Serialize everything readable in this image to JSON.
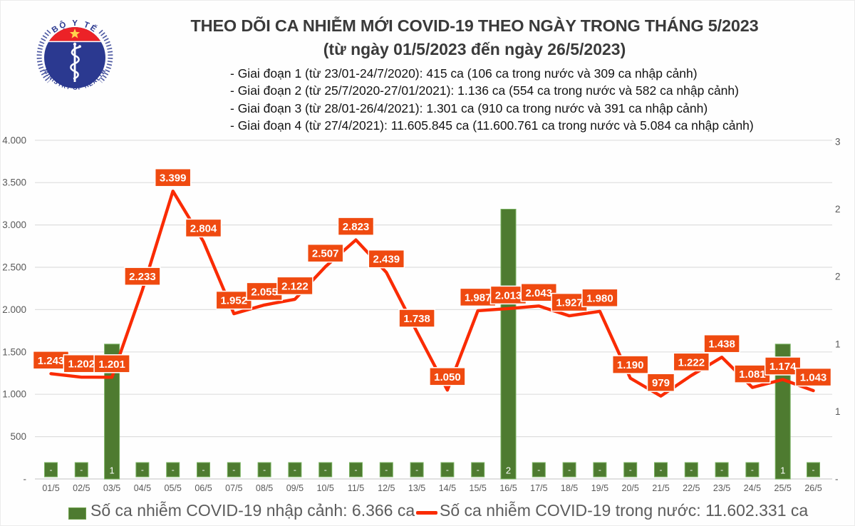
{
  "logo": {
    "arc_top": "BỘ Y TẾ",
    "arc_bottom": "MINISTRY OF HEALTH"
  },
  "header": {
    "title": "THEO DÕI CA NHIỄM MỚI COVID-19 THEO NGÀY TRONG THÁNG 5/2023",
    "subtitle": "(từ ngày 01/5/2023 đến ngày 26/5/2023)",
    "notes": [
      "- Giai đoạn 1 (từ 23/01-24/7/2020): 415 ca (106 ca trong nước và 309 ca nhập cảnh)",
      "- Giai đoạn 2 (từ 25/7/2020-27/01/2021): 1.136 ca (554 ca trong nước và 582 ca nhập cảnh)",
      "- Giai đoạn 3 (từ 28/01-26/4/2021): 1.301 ca (910 ca trong nước và 391 ca nhập cảnh)",
      "- Giai đoạn 4 (từ 27/4/2021): 11.605.845 ca (11.600.761 ca trong nước và 5.084 ca nhập cảnh)"
    ]
  },
  "chart_data": {
    "type": "combo",
    "title": "THEO DÕI CA NHIỄM MỚI COVID-19 THEO NGÀY TRONG THÁNG 5/2023",
    "categories": [
      "01/5",
      "02/5",
      "03/5",
      "04/5",
      "05/5",
      "06/5",
      "07/5",
      "08/5",
      "09/5",
      "10/5",
      "11/5",
      "12/5",
      "13/5",
      "14/5",
      "15/5",
      "16/5",
      "17/5",
      "18/5",
      "19/5",
      "20/5",
      "21/5",
      "22/5",
      "23/5",
      "24/5",
      "25/5",
      "26/5"
    ],
    "series": [
      {
        "name": "Số ca nhiễm COVID-19 trong nước",
        "type": "line",
        "axis": "left",
        "values": [
          1243,
          1202,
          1201,
          2233,
          3399,
          2804,
          1952,
          2055,
          2122,
          2507,
          2823,
          2439,
          1738,
          1050,
          1987,
          2013,
          2043,
          1927,
          1980,
          1190,
          979,
          1222,
          1438,
          1081,
          1174,
          1043
        ],
        "labels": [
          "1.243",
          "1.202",
          "1.201",
          "2.233",
          "3.399",
          "2.804",
          "1.952",
          "2.055",
          "2.122",
          "2.507",
          "2.823",
          "2.439",
          "1.738",
          "1.050",
          "1.987",
          "2.013",
          "2.043",
          "1.927",
          "1.980",
          "1.190",
          "979",
          "1.222",
          "1.438",
          "1.081",
          "1.174",
          "1.043"
        ]
      },
      {
        "name": "Số ca nhiễm COVID-19 nhập cảnh",
        "type": "bar",
        "axis": "right",
        "values": [
          0,
          0,
          1,
          0,
          0,
          0,
          0,
          0,
          0,
          0,
          0,
          0,
          0,
          0,
          0,
          2,
          0,
          0,
          0,
          0,
          0,
          0,
          0,
          0,
          1,
          0
        ],
        "labels": [
          "-",
          "-",
          "1",
          "-",
          "-",
          "-",
          "-",
          "-",
          "-",
          "-",
          "-",
          "-",
          "-",
          "-",
          "-",
          "2",
          "-",
          "-",
          "-",
          "-",
          "-",
          "-",
          "-",
          "-",
          "1",
          "-"
        ]
      }
    ],
    "left_axis": {
      "min": 0,
      "max": 4000,
      "tick_step": 500,
      "ticks": [
        "-",
        "500",
        "1.000",
        "1.500",
        "2.000",
        "2.500",
        "3.000",
        "3.500",
        "4.000"
      ]
    },
    "right_axis": {
      "tick_values": [
        0,
        0.5,
        1,
        1.5,
        2,
        2.5
      ],
      "ticks": [
        "-",
        "1",
        "1",
        "2",
        "2",
        "3"
      ]
    },
    "grid": true,
    "colors": {
      "line": "#FA2B02",
      "label_bg": "#EF4A10",
      "bar": "#4E7B30",
      "bar_border": "#79B261",
      "grid": "#DEDEDE",
      "axis_line": "#CFCFCF",
      "axis_text": "#595959"
    }
  },
  "legend": {
    "items": [
      {
        "label": "Số ca nhiễm COVID-19 nhập cảnh: 6.366 ca",
        "swatch": "bar",
        "color": "#4E7B30"
      },
      {
        "label": "Số ca nhiễm COVID-19 trong nước: 11.602.331 ca",
        "swatch": "line",
        "color": "#FA2B02"
      }
    ]
  }
}
